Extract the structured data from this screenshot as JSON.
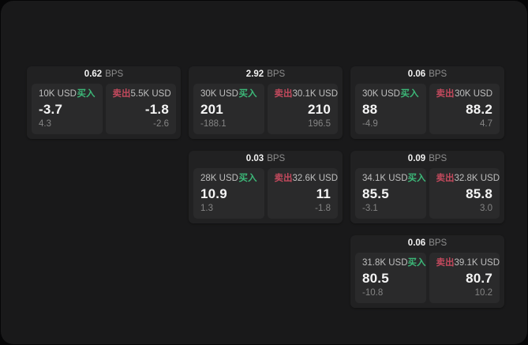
{
  "labels": {
    "buy": "买入",
    "sell": "卖出",
    "bps_unit": "BPS"
  },
  "colors": {
    "buy_green": "#3cb878",
    "sell_red": "#c2495d"
  },
  "cards": [
    {
      "grid": {
        "row": 1,
        "col": 1
      },
      "bps": "0.62",
      "buy": {
        "amount": "10K USD",
        "price": "-3.7",
        "delta": "4.3"
      },
      "sell": {
        "amount": "5.5K USD",
        "price": "-1.8",
        "delta": "-2.6"
      }
    },
    {
      "grid": {
        "row": 1,
        "col": 2
      },
      "bps": "2.92",
      "buy": {
        "amount": "30K USD",
        "price": "201",
        "delta": "-188.1"
      },
      "sell": {
        "amount": "30.1K USD",
        "price": "210",
        "delta": "196.5"
      }
    },
    {
      "grid": {
        "row": 1,
        "col": 3
      },
      "bps": "0.06",
      "buy": {
        "amount": "30K USD",
        "price": "88",
        "delta": "-4.9"
      },
      "sell": {
        "amount": "30K USD",
        "price": "88.2",
        "delta": "4.7"
      }
    },
    {
      "grid": {
        "row": 2,
        "col": 2
      },
      "bps": "0.03",
      "buy": {
        "amount": "28K USD",
        "price": "10.9",
        "delta": "1.3"
      },
      "sell": {
        "amount": "32.6K USD",
        "price": "11",
        "delta": "-1.8"
      }
    },
    {
      "grid": {
        "row": 2,
        "col": 3
      },
      "bps": "0.09",
      "buy": {
        "amount": "34.1K USD",
        "price": "85.5",
        "delta": "-3.1"
      },
      "sell": {
        "amount": "32.8K USD",
        "price": "85.8",
        "delta": "3.0"
      }
    },
    {
      "grid": {
        "row": 3,
        "col": 3
      },
      "bps": "0.06",
      "buy": {
        "amount": "31.8K USD",
        "price": "80.5",
        "delta": "-10.8"
      },
      "sell": {
        "amount": "39.1K USD",
        "price": "80.7",
        "delta": "10.2"
      }
    }
  ]
}
